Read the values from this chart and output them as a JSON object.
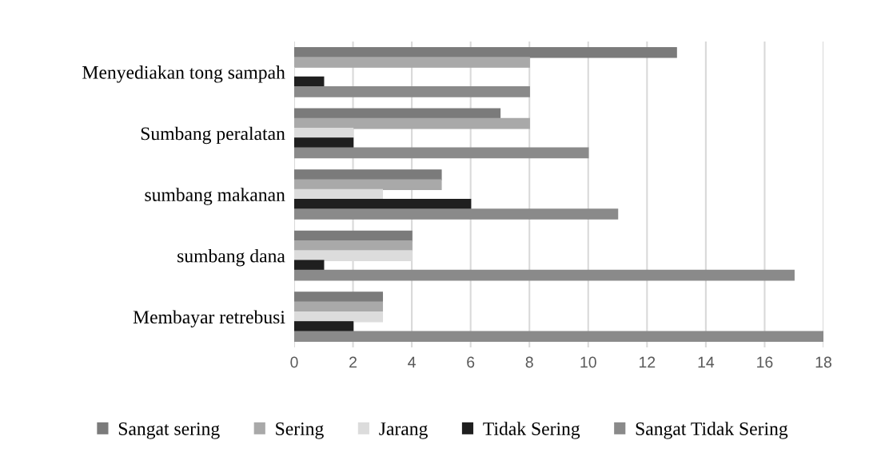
{
  "chart_data": {
    "type": "bar",
    "orientation": "horizontal",
    "categories": [
      "Menyediakan tong sampah",
      "Sumbang peralatan",
      "sumbang makanan",
      "sumbang dana",
      "Membayar retrebusi"
    ],
    "series": [
      {
        "name": "Sangat sering",
        "color": "#7b7b7b",
        "values": [
          13,
          7,
          5,
          4,
          3
        ]
      },
      {
        "name": "Sering",
        "color": "#a9a9a9",
        "values": [
          8,
          8,
          5,
          4,
          3
        ]
      },
      {
        "name": "Jarang",
        "color": "#dcdcdc",
        "values": [
          0,
          2,
          3,
          4,
          3
        ]
      },
      {
        "name": "Tidak Sering",
        "color": "#1f1f1f",
        "values": [
          1,
          2,
          6,
          1,
          2
        ]
      },
      {
        "name": "Sangat Tidak Sering",
        "color": "#8a8a8a",
        "values": [
          8,
          10,
          11,
          17,
          18
        ]
      }
    ],
    "xlim": [
      0,
      18
    ],
    "xticks": [
      0,
      2,
      4,
      6,
      8,
      10,
      12,
      14,
      16,
      18
    ],
    "grid": "x",
    "legend": "bottom"
  }
}
